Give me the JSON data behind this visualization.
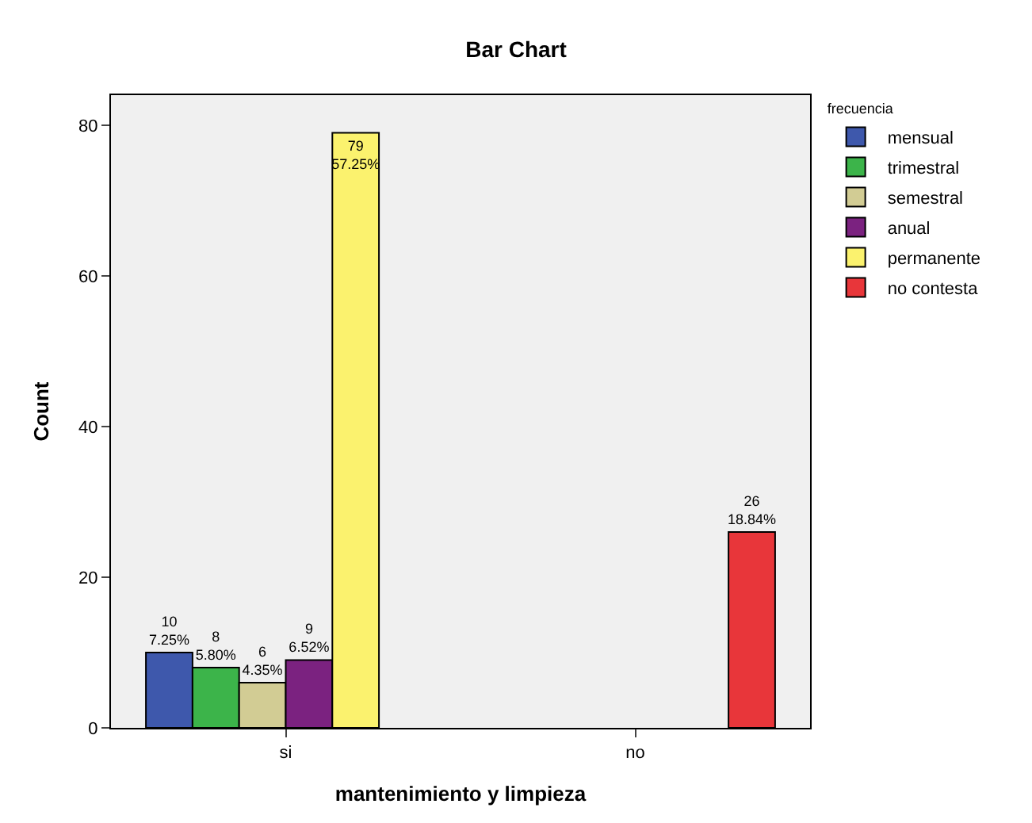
{
  "chart_data": {
    "type": "bar",
    "title": "Bar Chart",
    "xlabel": "mantenimiento y limpieza",
    "ylabel": "Count",
    "legend_title": "frecuencia",
    "categories": [
      "si",
      "no"
    ],
    "series": [
      {
        "name": "mensual",
        "color": "#3e58ac",
        "values": [
          10,
          null
        ],
        "value_labels": [
          "10\n7.25%",
          null
        ]
      },
      {
        "name": "trimestral",
        "color": "#3cb44a",
        "values": [
          8,
          null
        ],
        "value_labels": [
          "8\n5.80%",
          null
        ]
      },
      {
        "name": "semestral",
        "color": "#d2cc94",
        "values": [
          6,
          null
        ],
        "value_labels": [
          "6\n4.35%",
          null
        ]
      },
      {
        "name": "anual",
        "color": "#7b2280",
        "values": [
          9,
          null
        ],
        "value_labels": [
          "9\n6.52%",
          null
        ]
      },
      {
        "name": "permanente",
        "color": "#fbf26e",
        "values": [
          79,
          null
        ],
        "value_labels": [
          "79\n57.25%",
          null
        ]
      },
      {
        "name": "no contesta",
        "color": "#e8363a",
        "values": [
          null,
          26
        ],
        "value_labels": [
          null,
          "26\n18.84%"
        ]
      }
    ],
    "ylim": [
      0,
      84
    ],
    "yticks": [
      0,
      20,
      40,
      60,
      80
    ],
    "grid": false,
    "legend": "top right"
  }
}
